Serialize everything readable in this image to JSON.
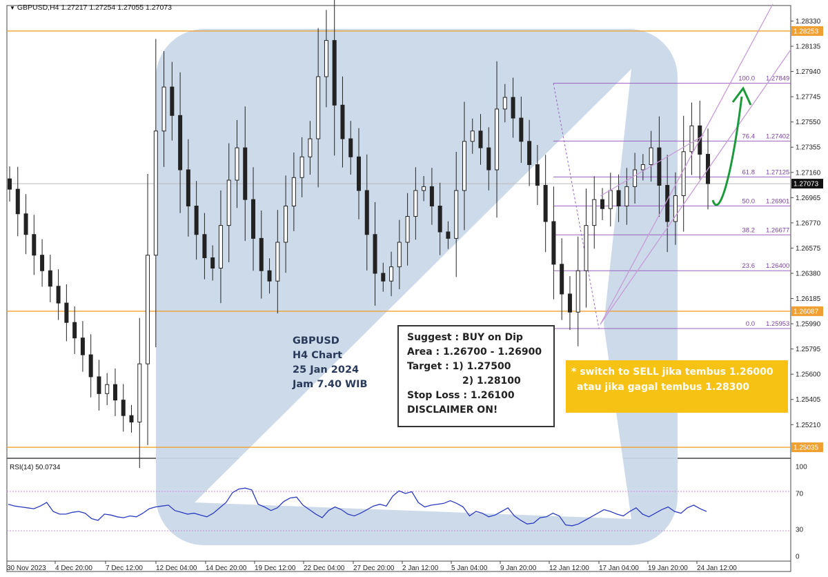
{
  "header": {
    "symbol_line": "GBPUSD,H4  1.27217 1.27254 1.27055 1.27073",
    "menu_icon": "triangle-down-icon"
  },
  "annotation": {
    "title_lines": [
      "GBPUSD",
      "H4 Chart",
      "25 Jan 2024",
      "Jam 7.40 WIB"
    ]
  },
  "suggest_box": {
    "lines": [
      "Suggest : BUY on Dip",
      "Area : 1.26700 - 1.26900",
      "Target : 1) 1.27500",
      "2) 1.28100",
      "Stop Loss : 1.26100",
      "DISCLAIMER ON!"
    ]
  },
  "switch_box": {
    "lines": [
      "* switch to SELL jika tembus 1.26000",
      "atau jika gagal tembus 1.28300"
    ]
  },
  "colors": {
    "candle": "#222222",
    "hline_orange": "#f0a030",
    "fib": "#9a60c0",
    "channel": "#c79ad8",
    "arrow": "#1a9a3a",
    "rsi_line": "#2a3ac0",
    "watermark": "#b7cbe0",
    "switch_bg": "#f6c315"
  },
  "chart_data": {
    "type": "candlestick",
    "symbol": "GBPUSD",
    "timeframe": "H4",
    "ohlc_last": {
      "open": 1.27217,
      "high": 1.27254,
      "low": 1.27055,
      "close": 1.27073
    },
    "y_ticks": [
      "1.28330",
      "1.28135",
      "1.27940",
      "1.27745",
      "1.27550",
      "1.27355",
      "1.27160",
      "1.26965",
      "1.26770",
      "1.26575",
      "1.26380",
      "1.26185",
      "1.25990",
      "1.25795",
      "1.25600",
      "1.25405",
      "1.25210"
    ],
    "y_ticks_values": [
      1.2833,
      1.28135,
      1.2794,
      1.27745,
      1.2755,
      1.27355,
      1.2716,
      1.26965,
      1.2677,
      1.26575,
      1.2638,
      1.26185,
      1.2599,
      1.25795,
      1.256,
      1.25405,
      1.2521
    ],
    "ylim": [
      1.2495,
      1.2845
    ],
    "x_ticks": [
      "30 Nov 2023",
      "4 Dec 20:00",
      "7 Dec 12:00",
      "12 Dec 04:00",
      "14 Dec 20:00",
      "19 Dec 12:00",
      "22 Dec 04:00",
      "27 Dec 20:00",
      "2 Jan 12:00",
      "5 Jan 04:00",
      "9 Jan 20:00",
      "12 Jan 12:00",
      "17 Jan 04:00",
      "19 Jan 20:00",
      "24 Jan 12:00"
    ],
    "price_levels": [
      {
        "label": "1.28253",
        "value": 1.28253,
        "style": "orange"
      },
      {
        "label": "1.26087",
        "value": 1.26087,
        "style": "orange"
      },
      {
        "label": "1.25035",
        "value": 1.25035,
        "style": "orange"
      },
      {
        "label": "1.27073",
        "value": 1.27073,
        "style": "current"
      }
    ],
    "fibonacci": [
      {
        "level": "100.0",
        "price": "1.27849",
        "value": 1.27849
      },
      {
        "level": "76.4",
        "price": "1.27402",
        "value": 1.27402
      },
      {
        "level": "61.8",
        "price": "1.27125",
        "value": 1.27125
      },
      {
        "level": "50.0",
        "price": "1.26901",
        "value": 1.26901
      },
      {
        "level": "38.2",
        "price": "1.26677",
        "value": 1.26677
      },
      {
        "level": "23.6",
        "price": "1.26400",
        "value": 1.264
      },
      {
        "level": "0.0",
        "price": "1.25953",
        "value": 1.25953
      }
    ],
    "close_path": [
      1.2703,
      1.2684,
      1.2668,
      1.2652,
      1.264,
      1.2628,
      1.2615,
      1.26,
      1.2588,
      1.2575,
      1.2558,
      1.2545,
      1.2552,
      1.254,
      1.2528,
      1.2523,
      1.2568,
      1.2652,
      1.2748,
      1.2782,
      1.276,
      1.2718,
      1.269,
      1.2668,
      1.265,
      1.2642,
      1.2675,
      1.271,
      1.2735,
      1.2695,
      1.2665,
      1.264,
      1.2632,
      1.2662,
      1.269,
      1.2712,
      1.2728,
      1.2742,
      1.279,
      1.2818,
      1.2768,
      1.2742,
      1.2728,
      1.2702,
      1.2668,
      1.2638,
      1.2632,
      1.2643,
      1.2662,
      1.2682,
      1.2702,
      1.2705,
      1.269,
      1.267,
      1.2665,
      1.2702,
      1.274,
      1.2748,
      1.2735,
      1.2718,
      1.2765,
      1.2774,
      1.2758,
      1.274,
      1.2722,
      1.2706,
      1.2678,
      1.2645,
      1.2622,
      1.2608,
      1.264,
      1.2675,
      1.2695,
      1.2688,
      1.2702,
      1.269,
      1.2705,
      1.2718,
      1.2722,
      1.2735,
      1.2706,
      1.2678,
      1.2698,
      1.2732,
      1.2752,
      1.273,
      1.27073
    ],
    "rsi": {
      "label": "RSI(14) 50.0734",
      "value": 50.0734,
      "levels": [
        70,
        30
      ],
      "ticks": [
        "100",
        "70",
        "30",
        "0"
      ],
      "values": [
        58,
        56,
        55,
        54,
        53,
        56,
        60,
        50,
        47,
        47,
        49,
        50,
        48,
        42,
        40,
        47,
        46,
        44,
        43,
        45,
        44,
        48,
        53,
        55,
        56,
        57,
        51,
        49,
        47,
        48,
        46,
        44,
        48,
        54,
        60,
        71,
        75,
        76,
        74,
        58,
        55,
        51,
        54,
        61,
        65,
        66,
        57,
        52,
        47,
        43,
        51,
        55,
        52,
        47,
        45,
        48,
        52,
        56,
        58,
        56,
        67,
        73,
        70,
        72,
        60,
        55,
        57,
        58,
        59,
        62,
        59,
        55,
        45,
        50,
        48,
        44,
        46,
        50,
        54,
        45,
        40,
        36,
        37,
        43,
        44,
        48,
        45,
        35,
        34,
        36,
        40,
        44,
        48,
        52,
        50,
        47,
        45,
        50,
        54,
        47,
        44,
        48,
        52,
        55,
        50,
        48,
        54,
        57,
        53,
        50
      ]
    }
  }
}
